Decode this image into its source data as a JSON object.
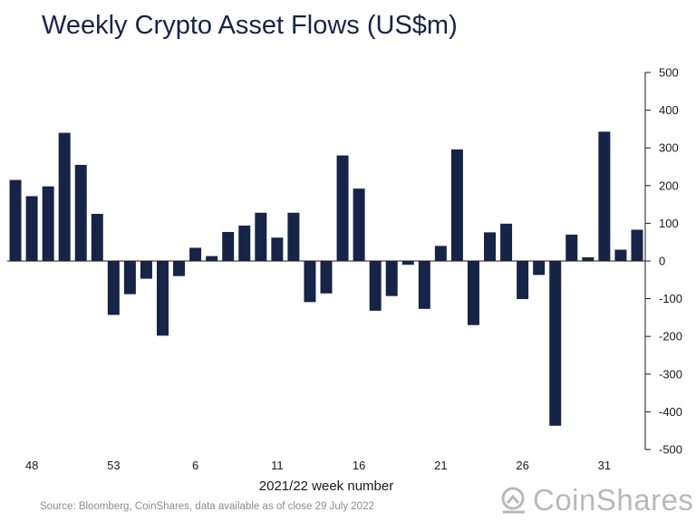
{
  "title": "Weekly Crypto Asset Flows (US$m)",
  "source": "Source: Bloomberg, CoinShares, data available as of close 29 July 2022",
  "logo": {
    "text": "CoinShares",
    "icon": "coinshares-logo-icon"
  },
  "colors": {
    "bar": "#162447",
    "axis": "#1a1a1a",
    "text": "#1a1a1a",
    "muted": "#8c8c8c"
  },
  "chart_data": {
    "type": "bar",
    "title": "Weekly Crypto Asset Flows (US$m)",
    "xlabel": "2021/22 week number",
    "ylabel": "",
    "ylim": [
      -500,
      500
    ],
    "y_ticks": [
      500,
      400,
      300,
      200,
      100,
      0,
      -100,
      -200,
      -300,
      -400,
      -500
    ],
    "x_tick_labels": [
      "48",
      "53",
      "6",
      "11",
      "16",
      "21",
      "26",
      "31"
    ],
    "x_tick_positions": [
      1,
      6,
      11,
      16,
      21,
      26,
      31,
      36
    ],
    "grid": false,
    "legend": "none",
    "series": [
      {
        "values": [
          215,
          172,
          198,
          340,
          255,
          125,
          -143,
          -88,
          -47,
          -198,
          -40,
          35,
          13,
          77,
          94,
          128,
          62,
          128,
          -109,
          -86,
          280,
          192,
          -132,
          -93,
          -10,
          -127,
          40,
          296,
          -170,
          76,
          99,
          -101,
          -37,
          -437,
          70,
          10,
          343,
          30,
          83
        ]
      }
    ]
  }
}
